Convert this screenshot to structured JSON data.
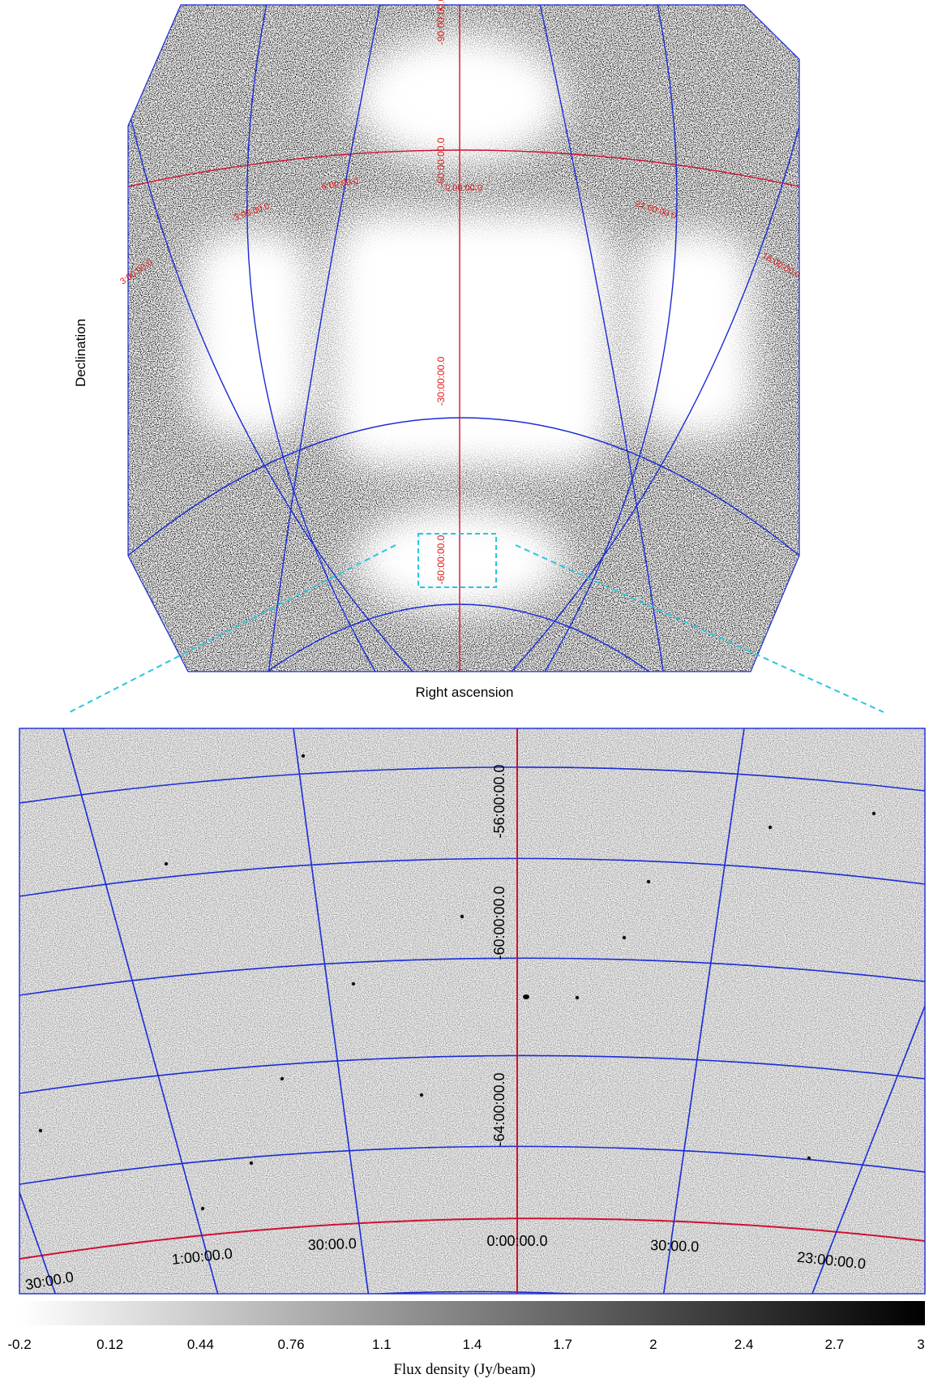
{
  "top_panel": {
    "ra_axis_label": "Right ascension",
    "dec_axis_label": "Declination",
    "dec_labels": [
      "-90:00:00.0",
      "-60:00:00.0",
      "-30:00:00.0",
      "-60:00:00.0"
    ],
    "ra_labels": [
      "-3:00:00.0",
      "3:00:00.0",
      "0:00:00.0",
      "21:00:00.0",
      "18:00:00.0",
      "6:00:00.0"
    ]
  },
  "zoom_panel": {
    "dec_labels": [
      "-56:00:00.0",
      "-60:00:00.0",
      "-64:00:00.0"
    ],
    "ra_labels": [
      "30:00.0",
      "1:00:00.0",
      "30:00.0",
      "0:00:00.0",
      "30:00.0",
      "23:00:00.0"
    ]
  },
  "colorbar": {
    "title": "Flux density (Jy/beam)",
    "ticks": [
      "-0.2",
      "0.12",
      "0.44",
      "0.76",
      "1.1",
      "1.4",
      "1.7",
      "2",
      "2.4",
      "2.7",
      "3"
    ],
    "range": [
      -0.2,
      3
    ],
    "cmap": [
      "#ffffff",
      "#000000"
    ]
  },
  "colors": {
    "grid": "#1a2bd6",
    "ref_grid": "#d01030",
    "zoom_box": "#29c6e0",
    "label_red": "#e01818"
  }
}
